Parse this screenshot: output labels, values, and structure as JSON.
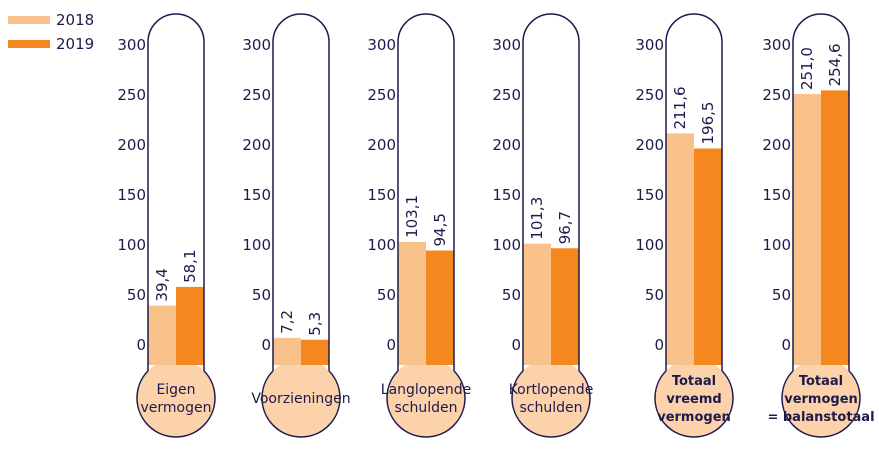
{
  "colors": {
    "y2018": "#f9c28a",
    "y2019": "#f5871f",
    "bulb": "#fbd2aa",
    "outline": "#1e1a4d",
    "text": "#1e1a4d"
  },
  "legend": {
    "items": [
      "2018",
      "2019"
    ]
  },
  "chart_data": {
    "type": "bar",
    "ylim": [
      0,
      300
    ],
    "yticks": [
      "0",
      "50",
      "100",
      "150",
      "200",
      "250",
      "300"
    ],
    "series": [
      {
        "name": "2018",
        "values": [
          39.4,
          7.2,
          103.1,
          101.3,
          211.6,
          251.0
        ],
        "labels": [
          "39,4",
          "7,2",
          "103,1",
          "101,3",
          "211,6",
          "251,0"
        ]
      },
      {
        "name": "2019",
        "values": [
          58.1,
          5.3,
          94.5,
          96.7,
          196.5,
          254.6
        ],
        "labels": [
          "58,1",
          "5,3",
          "94,5",
          "96,7",
          "196,5",
          "254,6"
        ]
      }
    ],
    "categories": [
      {
        "lines": [
          "Eigen",
          "vermogen"
        ],
        "bold": false
      },
      {
        "lines": [
          "Voorzieningen"
        ],
        "bold": false
      },
      {
        "lines": [
          "Langlopende",
          "schulden"
        ],
        "bold": false
      },
      {
        "lines": [
          "Kortlopende",
          "schulden"
        ],
        "bold": false
      },
      {
        "lines": [
          "Totaal",
          "vreemd",
          "vermogen"
        ],
        "bold": true
      },
      {
        "lines": [
          "Totaal",
          "vermogen",
          "= balanstotaal"
        ],
        "bold": true
      }
    ]
  }
}
